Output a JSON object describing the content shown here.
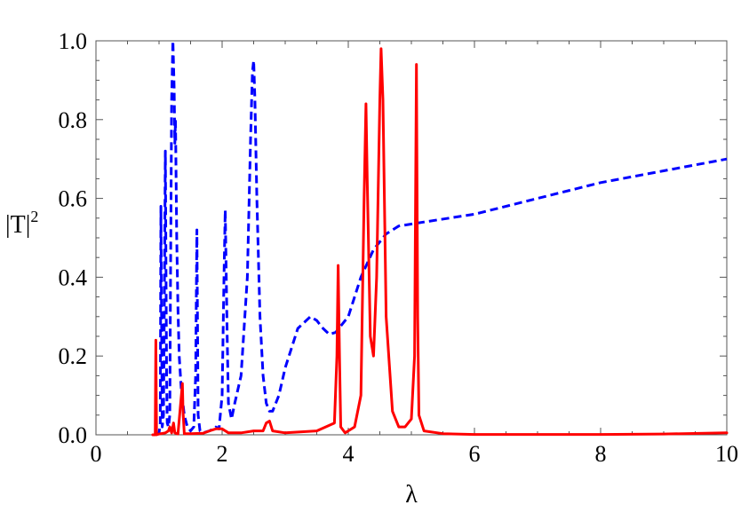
{
  "chart_data": {
    "type": "line",
    "xlabel": "λ",
    "ylabel_main": "|T|",
    "ylabel_sup": "2",
    "xlim": [
      0,
      10
    ],
    "ylim": [
      0,
      1.0
    ],
    "xticks": [
      0,
      2,
      4,
      6,
      8,
      10
    ],
    "xtick_labels": [
      "0",
      "2",
      "4",
      "6",
      "8",
      "10"
    ],
    "yticks": [
      0.0,
      0.2,
      0.4,
      0.6,
      0.8,
      1.0
    ],
    "ytick_labels": [
      "0.0",
      "0.2",
      "0.4",
      "0.6",
      "0.8",
      "1.0"
    ],
    "grid": false,
    "series": [
      {
        "color": "#0000ff",
        "style": "dashed",
        "x": [
          0.95,
          1.0,
          1.02,
          1.03,
          1.05,
          1.07,
          1.08,
          1.1,
          1.12,
          1.13,
          1.15,
          1.17,
          1.18,
          1.2,
          1.22,
          1.24,
          1.25,
          1.26,
          1.28,
          1.3,
          1.32,
          1.35,
          1.4,
          1.45,
          1.5,
          1.55,
          1.58,
          1.6,
          1.62,
          1.65,
          1.7,
          1.8,
          1.9,
          1.95,
          2.0,
          2.03,
          2.05,
          2.08,
          2.1,
          2.15,
          2.2,
          2.3,
          2.4,
          2.45,
          2.48,
          2.5,
          2.52,
          2.55,
          2.6,
          2.65,
          2.7,
          2.75,
          2.8,
          2.9,
          3.0,
          3.2,
          3.4,
          3.5,
          3.6,
          3.7,
          3.8,
          3.9,
          4.0,
          4.2,
          4.4,
          4.6,
          4.8,
          5.0,
          5.2,
          6.0,
          7.0,
          8.0,
          9.0,
          10.0
        ],
        "y": [
          0.0,
          0.005,
          0.03,
          0.58,
          0.02,
          0.05,
          0.25,
          0.72,
          0.15,
          0.03,
          0.02,
          0.05,
          0.35,
          0.85,
          1.0,
          0.88,
          0.74,
          0.8,
          0.5,
          0.32,
          0.2,
          0.12,
          0.05,
          0.02,
          0.01,
          0.02,
          0.15,
          0.52,
          0.05,
          0.01,
          0.005,
          0.01,
          0.02,
          0.015,
          0.1,
          0.4,
          0.57,
          0.25,
          0.08,
          0.04,
          0.08,
          0.15,
          0.4,
          0.75,
          0.92,
          0.95,
          0.85,
          0.6,
          0.3,
          0.15,
          0.08,
          0.06,
          0.06,
          0.1,
          0.17,
          0.27,
          0.3,
          0.29,
          0.27,
          0.255,
          0.26,
          0.28,
          0.3,
          0.4,
          0.47,
          0.51,
          0.53,
          0.535,
          0.54,
          0.56,
          0.6,
          0.64,
          0.67,
          0.7
        ]
      },
      {
        "color": "#ff0000",
        "style": "solid",
        "x": [
          0.9,
          0.94,
          0.95,
          0.96,
          1.0,
          1.1,
          1.15,
          1.17,
          1.2,
          1.23,
          1.25,
          1.3,
          1.37,
          1.38,
          1.4,
          1.5,
          1.7,
          1.8,
          1.9,
          2.0,
          2.1,
          2.3,
          2.5,
          2.65,
          2.7,
          2.75,
          2.8,
          3.0,
          3.5,
          3.78,
          3.82,
          3.84,
          3.86,
          3.88,
          3.95,
          4.1,
          4.2,
          4.25,
          4.28,
          4.3,
          4.35,
          4.4,
          4.45,
          4.5,
          4.52,
          4.55,
          4.6,
          4.7,
          4.8,
          4.9,
          5.0,
          5.05,
          5.08,
          5.1,
          5.12,
          5.2,
          5.5,
          6.0,
          7.0,
          8.0,
          9.0,
          10.0
        ],
        "y": [
          0.0,
          0.0,
          0.24,
          0.0,
          0.002,
          0.005,
          0.01,
          0.02,
          0.005,
          0.03,
          0.005,
          0.002,
          0.13,
          0.06,
          0.003,
          0.003,
          0.004,
          0.01,
          0.015,
          0.015,
          0.005,
          0.005,
          0.01,
          0.01,
          0.03,
          0.035,
          0.01,
          0.005,
          0.01,
          0.03,
          0.2,
          0.43,
          0.2,
          0.02,
          0.005,
          0.02,
          0.1,
          0.6,
          0.84,
          0.65,
          0.25,
          0.2,
          0.4,
          0.85,
          0.98,
          0.85,
          0.3,
          0.06,
          0.02,
          0.02,
          0.04,
          0.2,
          0.94,
          0.3,
          0.05,
          0.01,
          0.003,
          0.001,
          0.001,
          0.001,
          0.002,
          0.005
        ]
      }
    ]
  }
}
